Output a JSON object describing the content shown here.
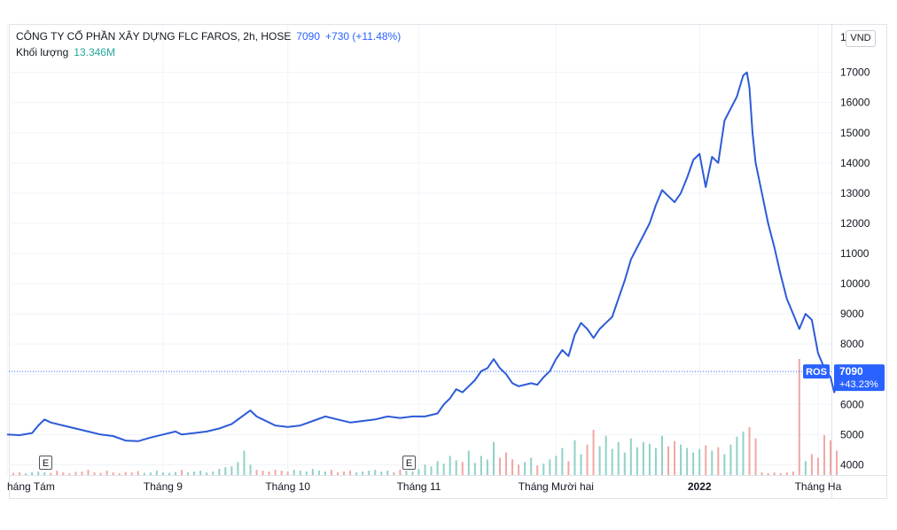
{
  "header": {
    "symbol_line": "CÔNG TY CỔ PHẦN XÂY DỰNG FLC FAROS, 2h, HOSE",
    "last_price": "7090",
    "change": "+730 (+11.48%)",
    "volume_label": "Khối lượng",
    "volume_value": "13.346M"
  },
  "currency": "VND",
  "axis_partial_label": "1",
  "ticker_label": "ROS",
  "price_label": {
    "price": "7090",
    "change_pct": "+43.23%"
  },
  "earnings_markers": [
    "E",
    "E"
  ],
  "colors": {
    "line": "#2d5bd7",
    "up_volume": "#8fd1c7",
    "down_volume": "#f0a7a3",
    "price_tag": "#2962ff",
    "grid": "#f0f3fa"
  },
  "chart_data": {
    "type": "line",
    "title": "CÔNG TY CỔ PHẦN XÂY DỰNG FLC FAROS, 2h, HOSE",
    "ylabel": "VND",
    "ylim": [
      3600,
      17900
    ],
    "yticks": [
      4000,
      5000,
      6000,
      7000,
      8000,
      9000,
      10000,
      11000,
      12000,
      13000,
      14000,
      15000,
      16000,
      17000
    ],
    "ytick_labels": [
      "4000",
      "5000",
      "6000",
      "7000",
      "8000",
      "9000",
      "10000",
      "11000",
      "12000",
      "13000",
      "14000",
      "15000",
      "16000",
      "17000"
    ],
    "xlim": [
      0,
      132
    ],
    "xticks": [
      {
        "t": 0,
        "label": "háng Tám",
        "bold": false
      },
      {
        "t": 25,
        "label": "Tháng 9",
        "bold": false
      },
      {
        "t": 45,
        "label": "Tháng 10",
        "bold": false
      },
      {
        "t": 66,
        "label": "Tháng 11",
        "bold": false
      },
      {
        "t": 88,
        "label": "Tháng Mười hai",
        "bold": false
      },
      {
        "t": 111,
        "label": "2022",
        "bold": true
      },
      {
        "t": 130,
        "label": "Tháng Ha",
        "bold": false
      }
    ],
    "earnings_t": [
      6,
      66
    ],
    "last_value": 7090,
    "series": [
      {
        "name": "ROS",
        "points": [
          [
            0,
            5000
          ],
          [
            2,
            4980
          ],
          [
            4,
            5050
          ],
          [
            5,
            5300
          ],
          [
            6,
            5500
          ],
          [
            7,
            5400
          ],
          [
            9,
            5300
          ],
          [
            11,
            5200
          ],
          [
            13,
            5100
          ],
          [
            15,
            5000
          ],
          [
            17,
            4950
          ],
          [
            19,
            4800
          ],
          [
            21,
            4780
          ],
          [
            23,
            4900
          ],
          [
            25,
            5000
          ],
          [
            27,
            5100
          ],
          [
            28,
            5000
          ],
          [
            30,
            5050
          ],
          [
            32,
            5100
          ],
          [
            34,
            5200
          ],
          [
            36,
            5350
          ],
          [
            37,
            5500
          ],
          [
            38,
            5650
          ],
          [
            39,
            5800
          ],
          [
            40,
            5600
          ],
          [
            41,
            5500
          ],
          [
            43,
            5300
          ],
          [
            45,
            5250
          ],
          [
            47,
            5300
          ],
          [
            49,
            5450
          ],
          [
            51,
            5600
          ],
          [
            53,
            5500
          ],
          [
            55,
            5400
          ],
          [
            57,
            5450
          ],
          [
            59,
            5500
          ],
          [
            61,
            5600
          ],
          [
            63,
            5550
          ],
          [
            65,
            5600
          ],
          [
            67,
            5600
          ],
          [
            69,
            5700
          ],
          [
            70,
            6000
          ],
          [
            71,
            6200
          ],
          [
            72,
            6500
          ],
          [
            73,
            6400
          ],
          [
            74,
            6600
          ],
          [
            75,
            6800
          ],
          [
            76,
            7100
          ],
          [
            77,
            7200
          ],
          [
            78,
            7500
          ],
          [
            79,
            7200
          ],
          [
            80,
            7000
          ],
          [
            81,
            6700
          ],
          [
            82,
            6600
          ],
          [
            84,
            6700
          ],
          [
            85,
            6650
          ],
          [
            86,
            6900
          ],
          [
            87,
            7100
          ],
          [
            88,
            7500
          ],
          [
            89,
            7800
          ],
          [
            90,
            7600
          ],
          [
            91,
            8300
          ],
          [
            92,
            8700
          ],
          [
            93,
            8500
          ],
          [
            94,
            8200
          ],
          [
            95,
            8500
          ],
          [
            96,
            8700
          ],
          [
            97,
            8900
          ],
          [
            98,
            9500
          ],
          [
            99,
            10100
          ],
          [
            100,
            10800
          ],
          [
            101,
            11200
          ],
          [
            102,
            11600
          ],
          [
            103,
            12000
          ],
          [
            104,
            12600
          ],
          [
            105,
            13100
          ],
          [
            106,
            12900
          ],
          [
            107,
            12700
          ],
          [
            108,
            13000
          ],
          [
            109,
            13500
          ],
          [
            110,
            14100
          ],
          [
            111,
            14300
          ],
          [
            112,
            13200
          ],
          [
            113,
            14200
          ],
          [
            114,
            14000
          ],
          [
            115,
            15400
          ],
          [
            116,
            15800
          ],
          [
            117,
            16200
          ],
          [
            118,
            16900
          ],
          [
            118.6,
            17000
          ],
          [
            119,
            16500
          ],
          [
            119.5,
            15000
          ],
          [
            120,
            14000
          ],
          [
            121,
            13000
          ],
          [
            122,
            12000
          ],
          [
            123,
            11200
          ],
          [
            124,
            10300
          ],
          [
            125,
            9500
          ],
          [
            126,
            9000
          ],
          [
            127,
            8500
          ],
          [
            128,
            9000
          ],
          [
            129,
            8800
          ],
          [
            130,
            7700
          ],
          [
            131,
            7200
          ],
          [
            132,
            6900
          ],
          [
            132.6,
            6400
          ],
          [
            133.2,
            7000
          ],
          [
            133.8,
            7090
          ]
        ]
      }
    ],
    "volume": {
      "name": "Khối lượng",
      "max": 13.346,
      "bars": [
        [
          1,
          0.25
        ],
        [
          2,
          0.3
        ],
        [
          3,
          0.2
        ],
        [
          4,
          0.35
        ],
        [
          5,
          0.4
        ],
        [
          6,
          0.3
        ],
        [
          7,
          0.25
        ],
        [
          8,
          0.5
        ],
        [
          9,
          0.3
        ],
        [
          10,
          0.2
        ],
        [
          11,
          0.35
        ],
        [
          12,
          0.4
        ],
        [
          13,
          0.6
        ],
        [
          14,
          0.3
        ],
        [
          15,
          0.25
        ],
        [
          16,
          0.5
        ],
        [
          17,
          0.3
        ],
        [
          18,
          0.2
        ],
        [
          19,
          0.35
        ],
        [
          20,
          0.3
        ],
        [
          21,
          0.45
        ],
        [
          22,
          0.25
        ],
        [
          23,
          0.3
        ],
        [
          24,
          0.5
        ],
        [
          25,
          0.3
        ],
        [
          26,
          0.25
        ],
        [
          27,
          0.35
        ],
        [
          28,
          0.6
        ],
        [
          29,
          0.3
        ],
        [
          30,
          0.4
        ],
        [
          31,
          0.5
        ],
        [
          32,
          0.3
        ],
        [
          33,
          0.4
        ],
        [
          34,
          0.7
        ],
        [
          35,
          0.9
        ],
        [
          36,
          1.0
        ],
        [
          37,
          1.5
        ],
        [
          38,
          2.8
        ],
        [
          39,
          1.2
        ],
        [
          40,
          0.6
        ],
        [
          41,
          0.5
        ],
        [
          42,
          0.4
        ],
        [
          43,
          0.6
        ],
        [
          44,
          0.5
        ],
        [
          45,
          0.4
        ],
        [
          46,
          0.6
        ],
        [
          47,
          0.5
        ],
        [
          48,
          0.4
        ],
        [
          49,
          0.7
        ],
        [
          50,
          0.5
        ],
        [
          51,
          0.4
        ],
        [
          52,
          0.6
        ],
        [
          53,
          0.3
        ],
        [
          54,
          0.4
        ],
        [
          55,
          0.5
        ],
        [
          56,
          0.3
        ],
        [
          57,
          0.4
        ],
        [
          58,
          0.5
        ],
        [
          59,
          0.6
        ],
        [
          60,
          0.4
        ],
        [
          61,
          0.5
        ],
        [
          62,
          0.3
        ],
        [
          63,
          0.6
        ],
        [
          64,
          0.5
        ],
        [
          65,
          0.4
        ],
        [
          66,
          0.7
        ],
        [
          67,
          1.2
        ],
        [
          68,
          1.0
        ],
        [
          69,
          1.6
        ],
        [
          70,
          1.3
        ],
        [
          71,
          2.2
        ],
        [
          72,
          1.7
        ],
        [
          73,
          1.5
        ],
        [
          74,
          2.8
        ],
        [
          75,
          1.4
        ],
        [
          76,
          2.2
        ],
        [
          77,
          1.8
        ],
        [
          78,
          3.8
        ],
        [
          79,
          2.0
        ],
        [
          80,
          2.6
        ],
        [
          81,
          1.8
        ],
        [
          82,
          1.2
        ],
        [
          83,
          1.5
        ],
        [
          84,
          2.0
        ],
        [
          85,
          1.1
        ],
        [
          86,
          1.3
        ],
        [
          87,
          1.8
        ],
        [
          88,
          2.2
        ],
        [
          89,
          3.1
        ],
        [
          90,
          1.6
        ],
        [
          91,
          4.0
        ],
        [
          92,
          2.4
        ],
        [
          93,
          3.5
        ],
        [
          94,
          5.2
        ],
        [
          95,
          3.3
        ],
        [
          96,
          4.5
        ],
        [
          97,
          3.0
        ],
        [
          98,
          3.8
        ],
        [
          99,
          2.6
        ],
        [
          100,
          4.2
        ],
        [
          101,
          3.2
        ],
        [
          102,
          3.8
        ],
        [
          103,
          3.6
        ],
        [
          104,
          3.1
        ],
        [
          105,
          4.5
        ],
        [
          106,
          3.3
        ],
        [
          107,
          3.9
        ],
        [
          108,
          3.5
        ],
        [
          109,
          3.1
        ],
        [
          110,
          2.6
        ],
        [
          111,
          3.0
        ],
        [
          112,
          3.4
        ],
        [
          113,
          2.8
        ],
        [
          114,
          3.2
        ],
        [
          115,
          2.4
        ],
        [
          116,
          3.5
        ],
        [
          117,
          4.4
        ],
        [
          118,
          5.0
        ],
        [
          119,
          5.5
        ],
        [
          120,
          4.2
        ],
        [
          121,
          0.3
        ],
        [
          122,
          0.2
        ],
        [
          123,
          0.3
        ],
        [
          124,
          0.2
        ],
        [
          125,
          0.3
        ],
        [
          126,
          0.4
        ],
        [
          127,
          13.346
        ],
        [
          128,
          1.6
        ],
        [
          129,
          2.4
        ],
        [
          130,
          2.0
        ],
        [
          131,
          4.6
        ],
        [
          132,
          4.0
        ],
        [
          133,
          2.8
        ]
      ]
    }
  }
}
